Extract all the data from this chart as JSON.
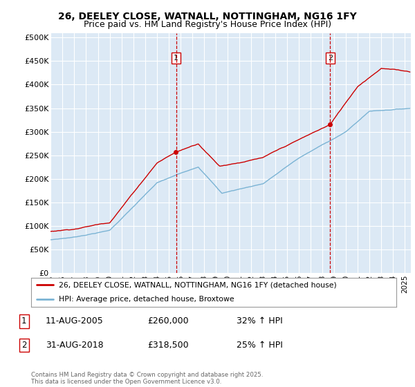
{
  "title": "26, DEELEY CLOSE, WATNALL, NOTTINGHAM, NG16 1FY",
  "subtitle": "Price paid vs. HM Land Registry's House Price Index (HPI)",
  "ylabel_ticks": [
    "£0",
    "£50K",
    "£100K",
    "£150K",
    "£200K",
    "£250K",
    "£300K",
    "£350K",
    "£400K",
    "£450K",
    "£500K"
  ],
  "ytick_values": [
    0,
    50000,
    100000,
    150000,
    200000,
    250000,
    300000,
    350000,
    400000,
    450000,
    500000
  ],
  "ylim": [
    0,
    510000
  ],
  "xlim_start": 1995.0,
  "xlim_end": 2025.5,
  "background_color": "#dce9f5",
  "plot_bg_color": "#dce9f5",
  "red_line_color": "#cc0000",
  "blue_line_color": "#7ab3d4",
  "sale1_date": "11-AUG-2005",
  "sale1_price": 260000,
  "sale1_price_str": "£260,000",
  "sale1_hpi": "32% ↑ HPI",
  "sale1_year": 2005.62,
  "sale2_date": "31-AUG-2018",
  "sale2_price": 318500,
  "sale2_price_str": "£318,500",
  "sale2_hpi": "25% ↑ HPI",
  "sale2_year": 2018.67,
  "legend_red": "26, DEELEY CLOSE, WATNALL, NOTTINGHAM, NG16 1FY (detached house)",
  "legend_blue": "HPI: Average price, detached house, Broxtowe",
  "footer": "Contains HM Land Registry data © Crown copyright and database right 2025.\nThis data is licensed under the Open Government Licence v3.0.",
  "title_fontsize": 10,
  "subtitle_fontsize": 9
}
